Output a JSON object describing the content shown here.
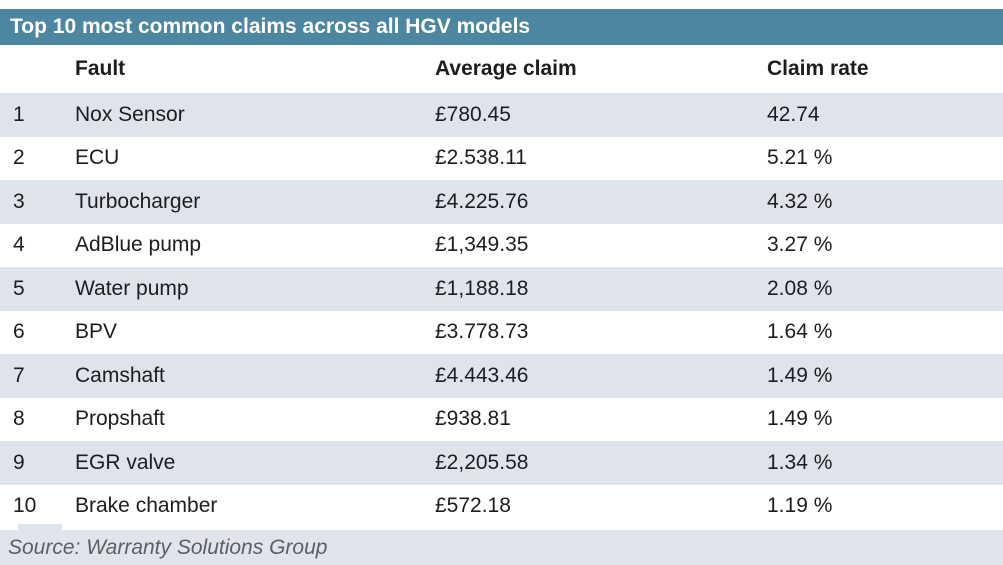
{
  "chart_data": {
    "type": "table",
    "title": "Top 10 most common claims across all HGV models",
    "columns": [
      "Fault",
      "Average claim",
      "Claim rate"
    ],
    "rows": [
      {
        "rank": "1",
        "fault": "Nox Sensor",
        "average_claim": "£780.45",
        "claim_rate": "42.74"
      },
      {
        "rank": "2",
        "fault": "ECU",
        "average_claim": "£2.538.11",
        "claim_rate": "5.21 %"
      },
      {
        "rank": "3",
        "fault": "Turbocharger",
        "average_claim": "£4.225.76",
        "claim_rate": "4.32 %"
      },
      {
        "rank": "4",
        "fault": "AdBlue pump",
        "average_claim": "£1,349.35",
        "claim_rate": "3.27 %"
      },
      {
        "rank": "5",
        "fault": "Water pump",
        "average_claim": "£1,188.18",
        "claim_rate": "2.08 %"
      },
      {
        "rank": "6",
        "fault": "BPV",
        "average_claim": "£3.778.73",
        "claim_rate": "1.64 %"
      },
      {
        "rank": "7",
        "fault": "Camshaft",
        "average_claim": "£4.443.46",
        "claim_rate": "1.49 %"
      },
      {
        "rank": "8",
        "fault": "Propshaft",
        "average_claim": "£938.81",
        "claim_rate": "1.49 %"
      },
      {
        "rank": "9",
        "fault": "EGR valve",
        "average_claim": "£2,205.58",
        "claim_rate": "1.34 %"
      },
      {
        "rank": "10",
        "fault": "Brake chamber",
        "average_claim": "£572.18",
        "claim_rate": "1.19 %"
      }
    ],
    "source": "Source: Warranty Solutions Group",
    "layout": {
      "shaded_ranks": [
        1,
        3,
        5,
        7,
        9
      ],
      "legend": "none",
      "grid": "alternating-row-shading"
    }
  },
  "colors": {
    "title_bar_bg": "#4c86a0",
    "title_text": "#ffffff",
    "row_shade": "#dfe3ec",
    "footer_bg": "#e1e4ea",
    "body_text": "#1d1d1d",
    "source_text": "#5a6067"
  }
}
